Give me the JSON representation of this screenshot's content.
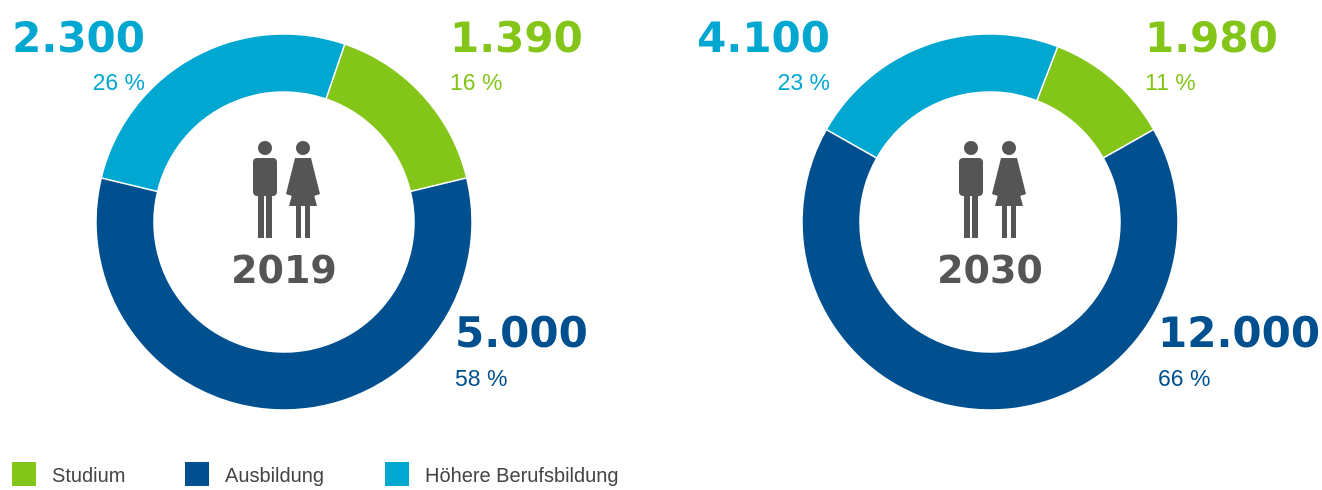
{
  "legend": {
    "labels": [
      "Studium",
      "Ausbildung",
      "Höhere Berufsbildung"
    ],
    "colors": [
      "#84c51a",
      "#00508f",
      "#00a7d0"
    ]
  },
  "chart_data": [
    {
      "type": "pie",
      "center_label": "2019",
      "values": [
        1390,
        5000,
        2300
      ],
      "value_labels": [
        "1.390",
        "5.000",
        "2.300"
      ],
      "percent_labels": [
        "16 %",
        "58 %",
        "26 %"
      ]
    },
    {
      "type": "pie",
      "center_label": "2030",
      "values": [
        1980,
        12000,
        4100
      ],
      "value_labels": [
        "1.980",
        "12.000",
        "4.100"
      ],
      "percent_labels": [
        "11 %",
        "66 %",
        "23 %"
      ]
    }
  ]
}
